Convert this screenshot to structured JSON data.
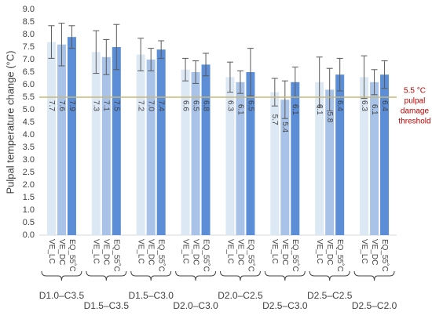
{
  "chart_data": {
    "type": "bar",
    "ylabel": "Pulpal temperature change (°C)",
    "categories": [
      "D1.0–C3.5",
      "D1.5–C3.5",
      "D1.5–C3.0",
      "D2.0–C3.0",
      "D2.0–C2.5",
      "D2.5–C3.0",
      "D2.5–C2.5",
      "D2.5–C2.0"
    ],
    "series": [
      {
        "name": "VE_LC",
        "color": "#dde8f5",
        "values": [
          7.7,
          7.3,
          7.2,
          6.6,
          6.3,
          5.7,
          6.1,
          6.3
        ],
        "value_labels": [
          "7.7",
          "7.3",
          "7.2",
          "6.6",
          "6.3",
          "5.7",
          "6.1",
          "6.3"
        ],
        "errors": [
          0.65,
          0.85,
          0.65,
          0.45,
          0.6,
          0.55,
          1.0,
          0.85
        ]
      },
      {
        "name": "VE_DC",
        "color": "#a9c3e8",
        "values": [
          7.6,
          7.1,
          7.0,
          6.5,
          6.1,
          5.4,
          5.8,
          6.1
        ],
        "value_labels": [
          "7.6",
          "7.1",
          "7.0",
          "6.5",
          "6.1",
          "5.4",
          "5.8",
          "6.1"
        ],
        "errors": [
          0.85,
          0.7,
          0.45,
          0.45,
          0.45,
          0.75,
          0.85,
          0.5
        ]
      },
      {
        "name": "EQ_55˚C",
        "color": "#5b8ed6",
        "values": [
          7.9,
          7.5,
          7.4,
          6.8,
          6.5,
          6.1,
          6.4,
          6.4
        ],
        "value_labels": [
          "7.9",
          "7.5",
          "7.4",
          "6.8",
          "6.5",
          "6.1",
          "6.4",
          "6.4"
        ],
        "errors": [
          0.45,
          0.9,
          0.35,
          0.45,
          0.95,
          0.6,
          0.65,
          0.55
        ]
      }
    ],
    "ylim": [
      0,
      9
    ],
    "yticks": [
      {
        "value": 0,
        "label": "0.0"
      },
      {
        "value": 0.5,
        "label": "0.5"
      },
      {
        "value": 1,
        "label": "1.0"
      },
      {
        "value": 1.5,
        "label": "1.5"
      },
      {
        "value": 2,
        "label": "2.0"
      },
      {
        "value": 2.5,
        "label": "2.5"
      },
      {
        "value": 3,
        "label": "3.0"
      },
      {
        "value": 3.5,
        "label": "3.5"
      },
      {
        "value": 4,
        "label": "4.0"
      },
      {
        "value": 4.5,
        "label": "4.5"
      },
      {
        "value": 5,
        "label": "5.0"
      },
      {
        "value": 5.5,
        "label": "5.5"
      },
      {
        "value": 6,
        "label": "6.0"
      },
      {
        "value": 6.5,
        "label": "6.5"
      },
      {
        "value": 7,
        "label": "7.0"
      },
      {
        "value": 7.5,
        "label": "7.5"
      },
      {
        "value": 8,
        "label": "8.0"
      },
      {
        "value": 8.5,
        "label": "8.5"
      },
      {
        "value": 9,
        "label": "9.0"
      }
    ],
    "threshold": {
      "value": 5.5,
      "color": "#c8b87a",
      "annotation": [
        "5.5 °C",
        "pulpal",
        "damage",
        "threshold"
      ]
    }
  }
}
